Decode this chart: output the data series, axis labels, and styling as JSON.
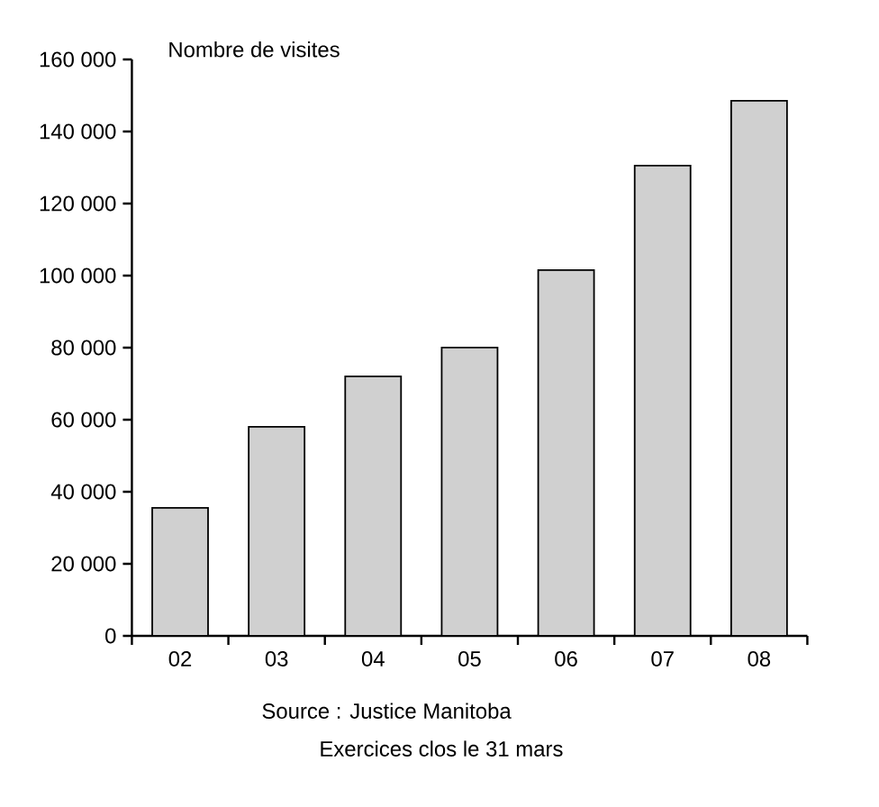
{
  "chart_data": {
    "type": "bar",
    "ylabel": "Nombre de visites",
    "categories": [
      "02",
      "03",
      "04",
      "05",
      "06",
      "07",
      "08"
    ],
    "values": [
      35500,
      58000,
      72000,
      80000,
      101500,
      130500,
      148500
    ],
    "color": "#d0d0d0",
    "ylim": [
      0,
      160000
    ],
    "yticks": [
      {
        "value": 0,
        "label": "0"
      },
      {
        "value": 20000,
        "label": "20 000"
      },
      {
        "value": 40000,
        "label": "40 000"
      },
      {
        "value": 60000,
        "label": "60 000"
      },
      {
        "value": 80000,
        "label": "80 000"
      },
      {
        "value": 100000,
        "label": "100 000"
      },
      {
        "value": 120000,
        "label": "120 000"
      },
      {
        "value": 140000,
        "label": "140 000"
      },
      {
        "value": 160000,
        "label": "160 000"
      }
    ],
    "annotations": [
      "Source : Justice Manitoba",
      "Exercices clos le 31 mars"
    ]
  }
}
